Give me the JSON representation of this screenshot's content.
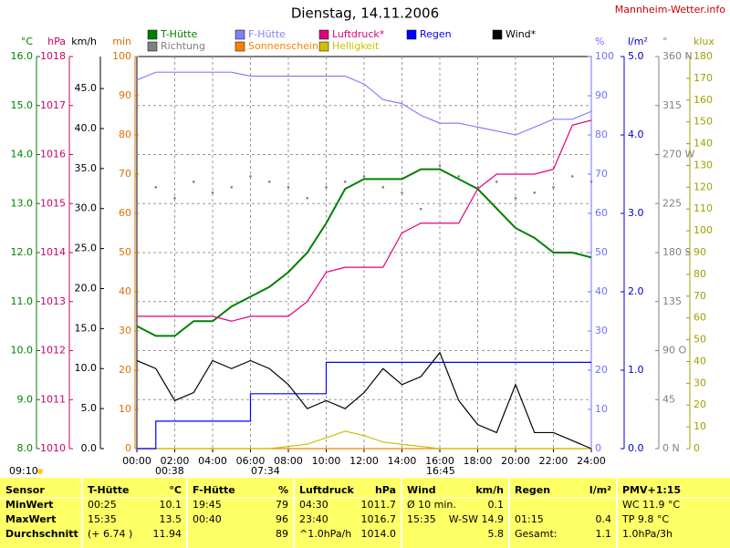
{
  "header": {
    "title": "Dienstag, 14.11.2006",
    "site": "Mannheim-Wetter.info",
    "time": "09:10"
  },
  "chart_data": {
    "type": "line",
    "grid": true,
    "x": [
      0,
      1,
      2,
      3,
      4,
      5,
      6,
      7,
      8,
      9,
      10,
      11,
      12,
      13,
      14,
      15,
      16,
      17,
      18,
      19,
      20,
      21,
      22,
      23,
      24
    ],
    "xlim": [
      0,
      24
    ],
    "xticks": [
      {
        "value": 0,
        "label": "00:00"
      },
      {
        "value": 2,
        "label": "02:00"
      },
      {
        "value": 4,
        "label": "04:00"
      },
      {
        "value": 6,
        "label": "06:00"
      },
      {
        "value": 8,
        "label": "08:00"
      },
      {
        "value": 10,
        "label": "10:00"
      },
      {
        "value": 12,
        "label": "12:00"
      },
      {
        "value": 14,
        "label": "14:00"
      },
      {
        "value": 16,
        "label": "16:00"
      },
      {
        "value": 18,
        "label": "18:00"
      },
      {
        "value": 20,
        "label": "20:00"
      },
      {
        "value": 22,
        "label": "22:00"
      },
      {
        "value": 24,
        "label": "24:00"
      }
    ],
    "axes": [
      {
        "unit": "°C",
        "side": "left",
        "color": "#008000",
        "lim": [
          8,
          16
        ],
        "ticks": [
          {
            "value": 8,
            "label": "8.0"
          },
          {
            "value": 9,
            "label": "9.0"
          },
          {
            "value": 10,
            "label": "10.0"
          },
          {
            "value": 11,
            "label": "11.0"
          },
          {
            "value": 12,
            "label": "12.0"
          },
          {
            "value": 13,
            "label": "13.0"
          },
          {
            "value": 14,
            "label": "14.0"
          },
          {
            "value": 15,
            "label": "15.0"
          },
          {
            "value": 16,
            "label": "16.0"
          }
        ]
      },
      {
        "unit": "hPa",
        "side": "left",
        "color": "#cc0066",
        "lim": [
          1010,
          1018
        ],
        "ticks": [
          1010,
          1011,
          1012,
          1013,
          1014,
          1015,
          1016,
          1017,
          1018
        ]
      },
      {
        "unit": "km/h",
        "side": "left",
        "color": "#000000",
        "lim": [
          0,
          49
        ],
        "ticks": [
          {
            "value": 0,
            "label": "0.0"
          },
          {
            "value": 5,
            "label": "5.0"
          },
          {
            "value": 10,
            "label": "10.0"
          },
          {
            "value": 15,
            "label": "15.0"
          },
          {
            "value": 20,
            "label": "20.0"
          },
          {
            "value": 25,
            "label": "25.0"
          },
          {
            "value": 30,
            "label": "30.0"
          },
          {
            "value": 35,
            "label": "35.0"
          },
          {
            "value": 40,
            "label": "40.0"
          },
          {
            "value": 45,
            "label": "45.0"
          }
        ]
      },
      {
        "unit": "min",
        "side": "left",
        "color": "#e07000",
        "lim": [
          0,
          100
        ],
        "ticks": [
          0,
          10,
          20,
          30,
          40,
          50,
          60,
          70,
          80,
          90,
          100
        ]
      },
      {
        "unit": "%",
        "side": "right",
        "color": "#7070ff",
        "lim": [
          0,
          100
        ],
        "ticks": [
          0,
          10,
          20,
          30,
          40,
          50,
          60,
          70,
          80,
          90,
          100
        ]
      },
      {
        "unit": "l/m²",
        "side": "right",
        "color": "#0000cc",
        "lim": [
          0,
          5
        ],
        "ticks": [
          {
            "value": 0,
            "label": "0.0"
          },
          {
            "value": 1,
            "label": "1.0"
          },
          {
            "value": 2,
            "label": "2.0"
          },
          {
            "value": 3,
            "label": "3.0"
          },
          {
            "value": 4,
            "label": "4.0"
          },
          {
            "value": 5,
            "label": "5.0"
          }
        ]
      },
      {
        "unit": "°",
        "side": "right",
        "color": "#808080",
        "lim": [
          0,
          360
        ],
        "ticks": [
          {
            "value": 0,
            "label": "0 N"
          },
          45,
          {
            "value": 90,
            "label": "90 O"
          },
          135,
          {
            "value": 180,
            "label": "180 S"
          },
          225,
          {
            "value": 270,
            "label": "270 W"
          },
          315,
          {
            "value": 360,
            "label": "360 N"
          }
        ]
      },
      {
        "unit": "klux",
        "side": "right",
        "color": "#a0a000",
        "lim": [
          0,
          180
        ],
        "ticks": [
          0,
          10,
          20,
          30,
          40,
          50,
          60,
          70,
          80,
          90,
          100,
          110,
          120,
          130,
          140,
          150,
          160,
          170,
          180
        ]
      }
    ],
    "series": [
      {
        "name": "T-Hütte",
        "color": "#008000",
        "axis": 0,
        "values": [
          10.5,
          10.3,
          10.3,
          10.6,
          10.6,
          10.9,
          11.1,
          11.3,
          11.6,
          12.0,
          12.6,
          13.3,
          13.5,
          13.5,
          13.5,
          13.7,
          13.7,
          13.5,
          13.3,
          12.9,
          12.5,
          12.3,
          12.0,
          12.0,
          11.9
        ]
      },
      {
        "name": "Richtung",
        "color": "#808080",
        "axis": 6,
        "style": "dots",
        "values": [
          250,
          240,
          230,
          245,
          235,
          240,
          250,
          245,
          240,
          230,
          240,
          245,
          250,
          240,
          235,
          220,
          260,
          250,
          240,
          245,
          230,
          235,
          240,
          250,
          245
        ]
      },
      {
        "name": "F-Hütte",
        "color": "#8080ff",
        "axis": 4,
        "values": [
          94,
          96,
          96,
          96,
          96,
          96,
          95,
          95,
          95,
          95,
          95,
          95,
          93,
          89,
          88,
          85,
          83,
          83,
          82,
          81,
          80,
          82,
          84,
          84,
          86
        ]
      },
      {
        "name": "Sonnenschein",
        "color": "#ff8000",
        "axis": 3,
        "values": [
          0,
          0,
          0,
          0,
          0,
          0,
          0,
          0,
          0,
          0,
          0,
          0,
          0,
          0,
          0,
          0,
          0,
          0,
          0,
          0,
          0,
          0,
          0,
          0,
          0
        ]
      },
      {
        "name": "Luftdruck*",
        "color": "#e0007f",
        "axis": 1,
        "values": [
          1012.7,
          1012.7,
          1012.7,
          1012.7,
          1012.7,
          1012.6,
          1012.7,
          1012.7,
          1012.7,
          1013.0,
          1013.6,
          1013.7,
          1013.7,
          1013.7,
          1014.4,
          1014.6,
          1014.6,
          1014.6,
          1015.3,
          1015.6,
          1015.6,
          1015.6,
          1015.7,
          1016.6,
          1016.7
        ]
      },
      {
        "name": "Helligkeit",
        "color": "#d0c000",
        "axis": 7,
        "values": [
          0,
          0,
          0,
          0,
          0,
          0,
          0,
          0,
          1,
          2,
          5,
          8,
          6,
          3,
          2,
          1,
          0,
          0,
          0,
          0,
          0,
          0,
          0,
          0,
          0
        ]
      },
      {
        "name": "Regen",
        "color": "#0000ff",
        "axis": 5,
        "step": true,
        "values": [
          0,
          0.35,
          0.35,
          0.35,
          0.35,
          0.35,
          0.7,
          0.7,
          0.7,
          0.7,
          1.1,
          1.1,
          1.1,
          1.1,
          1.1,
          1.1,
          1.1,
          1.1,
          1.1,
          1.1,
          1.1,
          1.1,
          1.1,
          1.1,
          1.1
        ]
      },
      {
        "name": "Wind*",
        "color": "#000000",
        "axis": 2,
        "values": [
          11,
          10,
          6,
          7,
          11,
          10,
          11,
          10,
          8,
          5,
          6,
          5,
          7,
          10,
          8,
          9,
          12,
          6,
          3,
          2,
          8,
          2,
          2,
          1,
          0
        ]
      }
    ],
    "annotations": [
      "00:38",
      "07:34",
      "16:45"
    ]
  },
  "table": {
    "labels": [
      "Sensor",
      "MinWert",
      "MaxWert",
      "Durchschnitt"
    ],
    "columns": [
      {
        "name": "T-Hütte",
        "unit": "°C",
        "rows": [
          [
            "00:25",
            "10.1"
          ],
          [
            "15:35",
            "13.5"
          ],
          [
            "(+ 6.74 )",
            "11.94"
          ]
        ]
      },
      {
        "name": "F-Hütte",
        "unit": "%",
        "rows": [
          [
            "19:45",
            "79"
          ],
          [
            "00:40",
            "96"
          ],
          [
            null,
            "89"
          ]
        ]
      },
      {
        "name": "Luftdruck",
        "unit": "hPa",
        "rows": [
          [
            "04:30",
            "1011.7"
          ],
          [
            "23:40",
            "1016.7"
          ],
          [
            "^1.0hPa/h",
            "1014.0"
          ]
        ]
      },
      {
        "name": "Wind",
        "unit": "km/h",
        "rows": [
          [
            "Ø 10 min.",
            "0.1"
          ],
          [
            "15:35",
            "W-SW 14.9"
          ],
          [
            null,
            "5.8"
          ]
        ]
      },
      {
        "name": "Regen",
        "unit": "l/m²",
        "rows": [
          [
            null,
            null
          ],
          [
            "01:15",
            "0.4"
          ],
          [
            "Gesamt:",
            "1.1"
          ]
        ]
      },
      {
        "name": "PMV+1:15",
        "unit": null,
        "rows": [
          [
            "WC 11.9 °C",
            null
          ],
          [
            "TP 9.8 °C",
            null
          ],
          [
            "1.0hPa/3h",
            null
          ]
        ]
      }
    ]
  }
}
